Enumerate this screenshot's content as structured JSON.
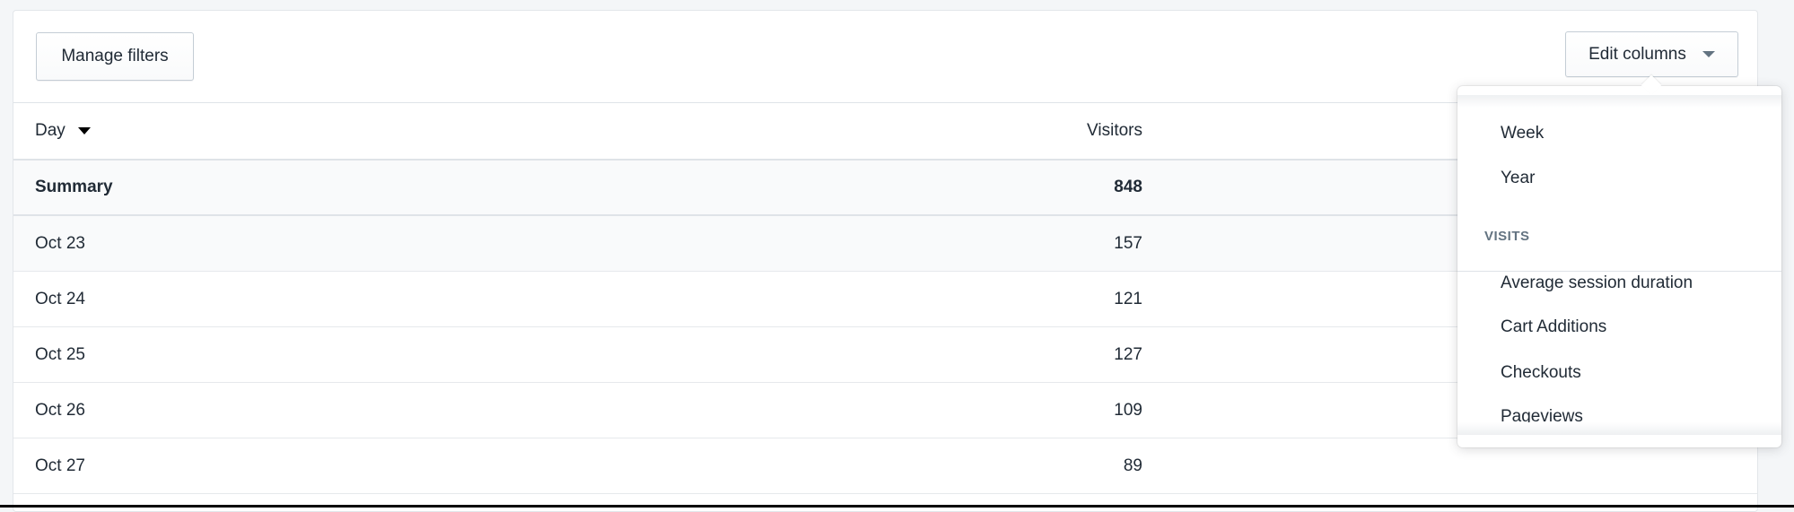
{
  "toolbar": {
    "manage_filters": "Manage filters",
    "edit_columns": "Edit columns"
  },
  "table": {
    "headers": [
      "Day",
      "Visitors"
    ],
    "summary": {
      "label": "Summary",
      "visitors": "848"
    },
    "rows": [
      {
        "day": "Oct 23",
        "visitors": "157"
      },
      {
        "day": "Oct 24",
        "visitors": "121"
      },
      {
        "day": "Oct 25",
        "visitors": "127"
      },
      {
        "day": "Oct 26",
        "visitors": "109"
      },
      {
        "day": "Oct 27",
        "visitors": "89"
      }
    ]
  },
  "menu": {
    "items_top": [
      "Week",
      "Year"
    ],
    "section": "VISITS",
    "items": [
      "Average session duration",
      "Cart Additions",
      "Checkouts",
      "Pageviews"
    ]
  }
}
